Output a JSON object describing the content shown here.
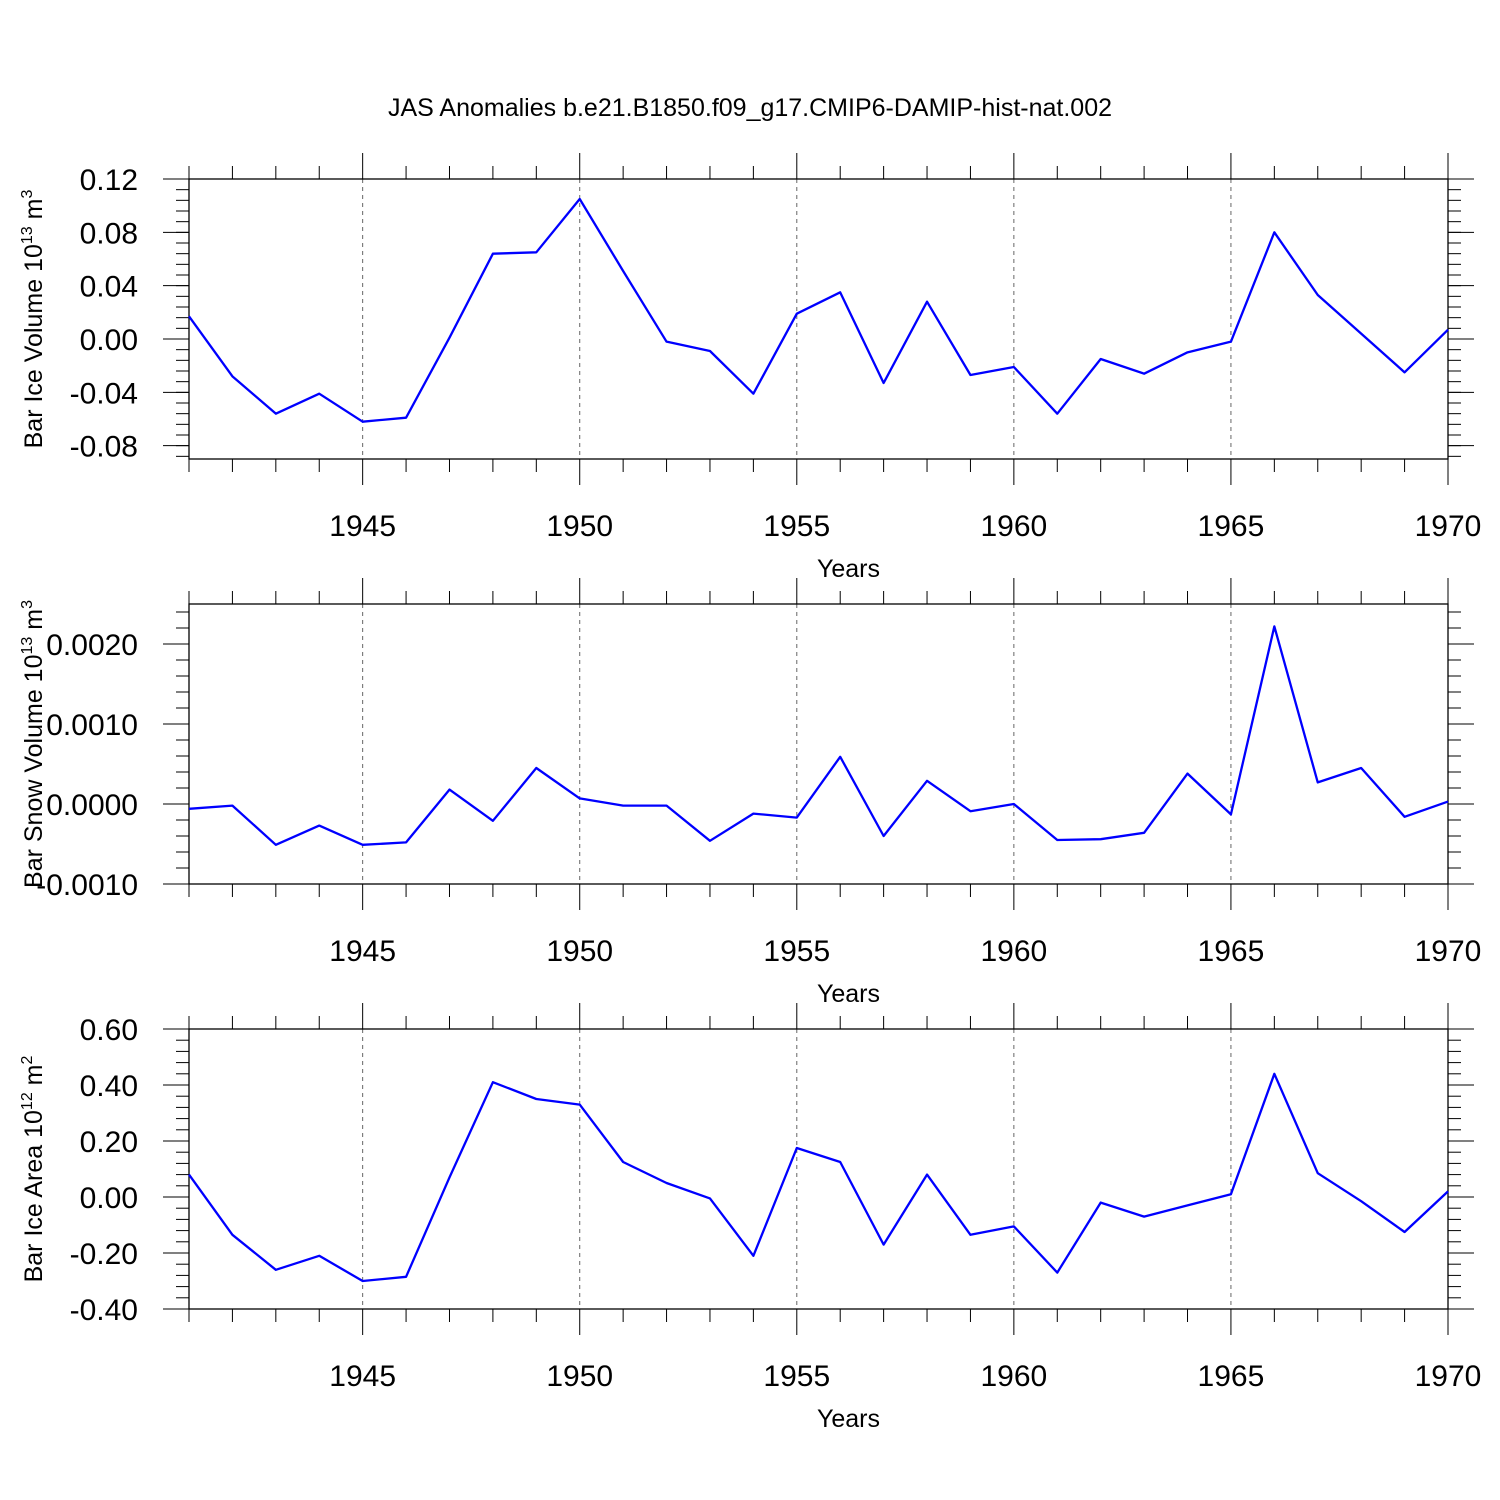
{
  "title": "JAS Anomalies b.e21.B1850.f09_g17.CMIP6-DAMIP-hist-nat.002",
  "chart_data": [
    {
      "type": "line",
      "xlabel": "Years",
      "ylabel": {
        "text": "Bar Ice Volume 10",
        "sup1": "13",
        "mid": " m",
        "sup2": "3"
      },
      "xlim": [
        1941,
        1970
      ],
      "ylim": [
        -0.09,
        0.12
      ],
      "xticks": [
        1945,
        1950,
        1955,
        1960,
        1965,
        1970
      ],
      "yticks": [
        -0.08,
        -0.04,
        0.0,
        0.04,
        0.08,
        0.12
      ],
      "ytick_labels": [
        "-0.08",
        "-0.04",
        "0.00",
        "0.04",
        "0.08",
        "0.12"
      ],
      "x_minor": 1,
      "y_minor": 0.008,
      "grid": "vertical-dashed",
      "color": "#0000ff",
      "x": [
        1941,
        1942,
        1943,
        1944,
        1945,
        1946,
        1947,
        1948,
        1949,
        1950,
        1951,
        1952,
        1953,
        1954,
        1955,
        1956,
        1957,
        1958,
        1959,
        1960,
        1961,
        1962,
        1963,
        1964,
        1965,
        1966,
        1967,
        1968,
        1969,
        1970
      ],
      "values": [
        0.017,
        -0.028,
        -0.056,
        -0.041,
        -0.062,
        -0.059,
        0.001,
        0.064,
        0.065,
        0.105,
        0.051,
        -0.002,
        -0.009,
        -0.041,
        0.019,
        0.035,
        -0.033,
        0.028,
        -0.027,
        -0.021,
        -0.056,
        -0.015,
        -0.026,
        -0.01,
        -0.002,
        0.08,
        0.033,
        0.004,
        -0.025,
        0.007
      ]
    },
    {
      "type": "line",
      "xlabel": "Years",
      "ylabel": {
        "text": "Bar Snow Volume 10",
        "sup1": "13",
        "mid": " m",
        "sup2": "3"
      },
      "xlim": [
        1941,
        1970
      ],
      "ylim": [
        -0.001,
        0.0025
      ],
      "xticks": [
        1945,
        1950,
        1955,
        1960,
        1965,
        1970
      ],
      "yticks": [
        -0.001,
        0.0,
        0.001,
        0.002
      ],
      "ytick_labels": [
        "-0.0010",
        "0.0000",
        "0.0010",
        "0.0020"
      ],
      "x_minor": 1,
      "y_minor": 0.0002,
      "grid": "vertical-dashed",
      "color": "#0000ff",
      "x": [
        1941,
        1942,
        1943,
        1944,
        1945,
        1946,
        1947,
        1948,
        1949,
        1950,
        1951,
        1952,
        1953,
        1954,
        1955,
        1956,
        1957,
        1958,
        1959,
        1960,
        1961,
        1962,
        1963,
        1964,
        1965,
        1966,
        1967,
        1968,
        1969,
        1970
      ],
      "values": [
        -6e-05,
        -2e-05,
        -0.00051,
        -0.00027,
        -0.00051,
        -0.00048,
        0.00018,
        -0.00021,
        0.00045,
        7e-05,
        -2e-05,
        -2e-05,
        -0.00046,
        -0.00012,
        -0.00017,
        0.00059,
        -0.0004,
        0.00029,
        -9e-05,
        0.0,
        -0.00045,
        -0.00044,
        -0.00036,
        0.00038,
        -0.00013,
        0.00222,
        0.00027,
        0.00045,
        -0.00016,
        3e-05
      ]
    },
    {
      "type": "line",
      "xlabel": "Years",
      "ylabel": {
        "text": "Bar Ice Area 10",
        "sup1": "12",
        "mid": " m",
        "sup2": "2"
      },
      "xlim": [
        1941,
        1970
      ],
      "ylim": [
        -0.4,
        0.6
      ],
      "xticks": [
        1945,
        1950,
        1955,
        1960,
        1965,
        1970
      ],
      "yticks": [
        -0.4,
        -0.2,
        0.0,
        0.2,
        0.4,
        0.6
      ],
      "ytick_labels": [
        "-0.40",
        "-0.20",
        "0.00",
        "0.20",
        "0.40",
        "0.60"
      ],
      "x_minor": 1,
      "y_minor": 0.04,
      "grid": "vertical-dashed",
      "color": "#0000ff",
      "x": [
        1941,
        1942,
        1943,
        1944,
        1945,
        1946,
        1947,
        1948,
        1949,
        1950,
        1951,
        1952,
        1953,
        1954,
        1955,
        1956,
        1957,
        1958,
        1959,
        1960,
        1961,
        1962,
        1963,
        1964,
        1965,
        1966,
        1967,
        1968,
        1969,
        1970
      ],
      "values": [
        0.08,
        -0.135,
        -0.26,
        -0.21,
        -0.3,
        -0.285,
        0.07,
        0.41,
        0.35,
        0.33,
        0.125,
        0.05,
        -0.005,
        -0.21,
        0.175,
        0.125,
        -0.17,
        0.08,
        -0.135,
        -0.105,
        -0.27,
        -0.02,
        -0.07,
        -0.03,
        0.01,
        0.44,
        0.085,
        -0.015,
        -0.125,
        0.02
      ]
    }
  ]
}
